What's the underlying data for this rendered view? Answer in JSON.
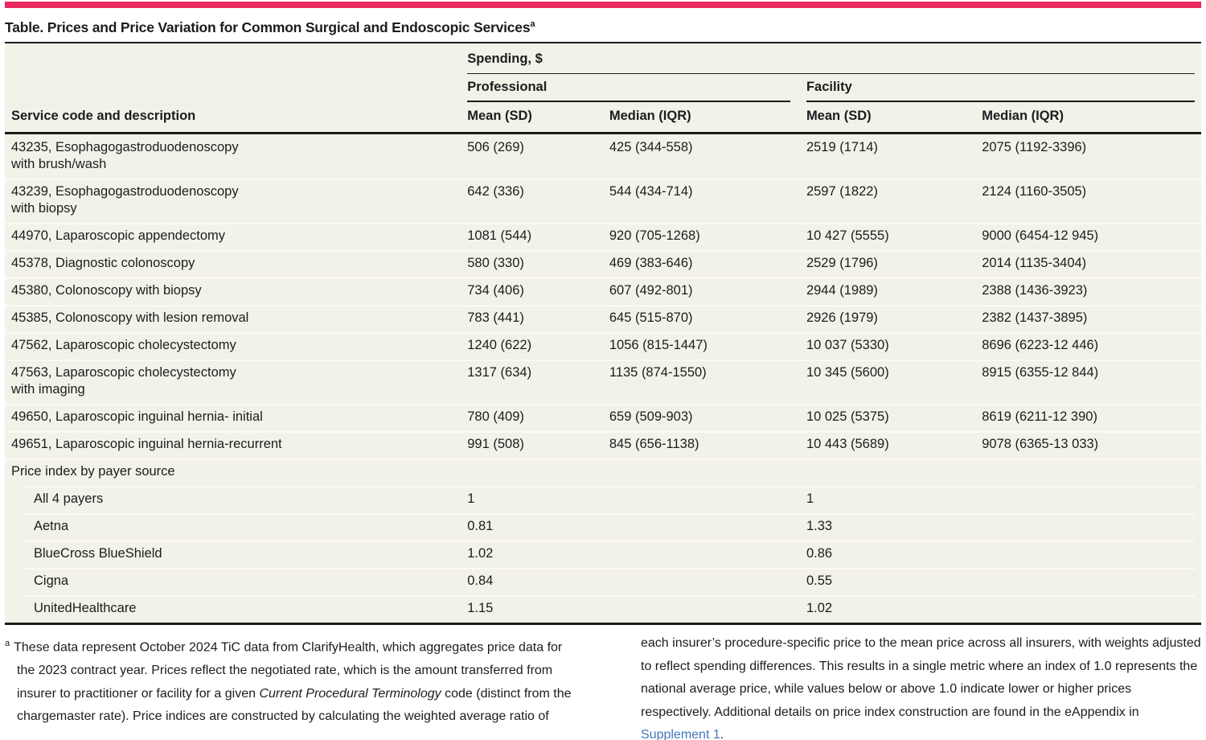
{
  "colors": {
    "accent_pink": "#E8295F",
    "table_bg": "#F3F2E9",
    "rule_dark": "#1C1C1C",
    "row_separator": "#FBFBF4",
    "link_blue": "#4377BB"
  },
  "title": {
    "text": "Table. Prices and Price Variation for Common Surgical and Endoscopic Services",
    "marker": "a"
  },
  "header": {
    "row_label": "Service code and description",
    "spending_group": "Spending, $",
    "professional": "Professional",
    "facility": "Facility",
    "prof_mean": "Mean (SD)",
    "prof_median": "Median (IQR)",
    "fac_mean": "Mean (SD)",
    "fac_median": "Median (IQR)"
  },
  "table": {
    "rows": [
      {
        "label": "43235, Esophagogastroduodenoscopy\nwith brush/wash",
        "prof_mean": "506 (269)",
        "prof_median": "425 (344-558)",
        "fac_mean": "2519 (1714)",
        "fac_median": "2075 (1192-3396)"
      },
      {
        "label": "43239, Esophagogastroduodenoscopy\nwith biopsy",
        "prof_mean": "642 (336)",
        "prof_median": "544 (434-714)",
        "fac_mean": "2597 (1822)",
        "fac_median": "2124 (1160-3505)"
      },
      {
        "label": "44970, Laparoscopic appendectomy",
        "prof_mean": "1081 (544)",
        "prof_median": "920 (705-1268)",
        "fac_mean": "10 427 (5555)",
        "fac_median": "9000 (6454-12 945)"
      },
      {
        "label": "45378, Diagnostic colonoscopy",
        "prof_mean": "580 (330)",
        "prof_median": "469 (383-646)",
        "fac_mean": "2529 (1796)",
        "fac_median": "2014 (1135-3404)"
      },
      {
        "label": "45380, Colonoscopy with biopsy",
        "prof_mean": "734 (406)",
        "prof_median": "607 (492-801)",
        "fac_mean": "2944 (1989)",
        "fac_median": "2388 (1436-3923)"
      },
      {
        "label": "45385, Colonoscopy with lesion removal",
        "prof_mean": "783 (441)",
        "prof_median": "645 (515-870)",
        "fac_mean": "2926 (1979)",
        "fac_median": "2382 (1437-3895)"
      },
      {
        "label": "47562, Laparoscopic cholecystectomy",
        "prof_mean": "1240 (622)",
        "prof_median": "1056 (815-1447)",
        "fac_mean": "10 037 (5330)",
        "fac_median": "8696 (6223-12 446)"
      },
      {
        "label": "47563, Laparoscopic cholecystectomy\nwith imaging",
        "prof_mean": "1317 (634)",
        "prof_median": "1135 (874-1550)",
        "fac_mean": "10 345 (5600)",
        "fac_median": "8915 (6355-12 844)"
      },
      {
        "label": "49650, Laparoscopic inguinal hernia- initial",
        "prof_mean": "780 (409)",
        "prof_median": "659 (509-903)",
        "fac_mean": "10 025 (5375)",
        "fac_median": "8619 (6211-12 390)"
      },
      {
        "label": "49651, Laparoscopic inguinal hernia-recurrent",
        "prof_mean": "991 (508)",
        "prof_median": "845 (656-1138)",
        "fac_mean": "10 443 (5689)",
        "fac_median": "9078 (6365-13 033)"
      }
    ],
    "price_index": {
      "section_label": "Price index by payer source",
      "rows": [
        {
          "label": "All 4 payers",
          "prof": "1",
          "fac": "1"
        },
        {
          "label": "Aetna",
          "prof": "0.81",
          "fac": "1.33"
        },
        {
          "label": "BlueCross BlueShield",
          "prof": "1.02",
          "fac": "0.86"
        },
        {
          "label": "Cigna",
          "prof": "0.84",
          "fac": "0.55"
        },
        {
          "label": "UnitedHealthcare",
          "prof": "1.15",
          "fac": "1.02"
        }
      ]
    }
  },
  "footnote": {
    "marker": "a",
    "seg1": "These data represent October 2024 TiC data from ClarifyHealth, which aggregates price data for the 2023 contract year. Prices reflect the negotiated rate, which is the amount transferred from insurer to practitioner or facility for a given ",
    "italic": "Current Procedural Terminology",
    "seg2": " code (distinct from the chargemaster rate). Price indices are constructed by calculating the weighted average ratio of each insurer’s procedure-specific price to the mean price across all insurers, with weights adjusted to reflect spending differences. This results in a single metric where an index of 1.0 represents the national average price, while values below or above 1.0 indicate lower or higher prices respectively. Additional details on price index construction are found in the eAppendix in ",
    "link": "Supplement 1",
    "seg3": "."
  }
}
